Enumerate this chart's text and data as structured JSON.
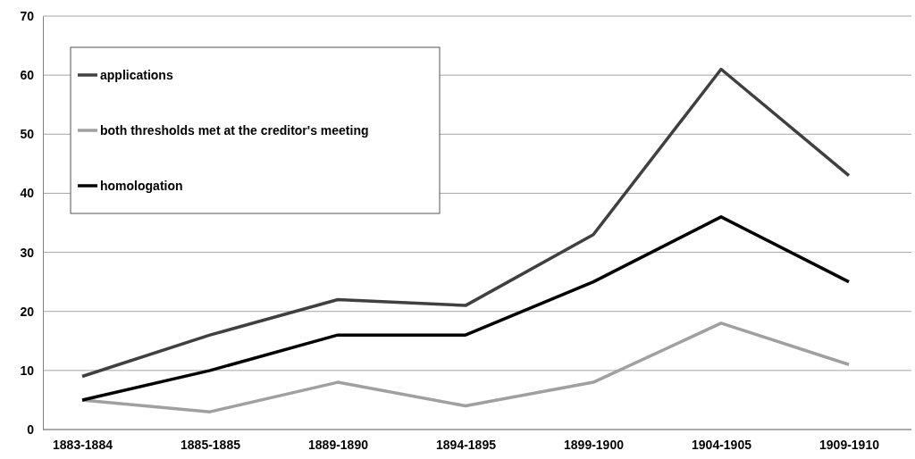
{
  "chart_data": {
    "type": "line",
    "categories": [
      "1883-1884",
      "1885-1885",
      "1889-1890",
      "1894-1895",
      "1899-1900",
      "1904-1905",
      "1909-1910"
    ],
    "series": [
      {
        "name": "applications",
        "color": "#404040",
        "values": [
          9,
          16,
          22,
          21,
          33,
          61,
          43
        ]
      },
      {
        "name": "both thresholds met at the creditor's meeting",
        "color": "#a0a0a0",
        "values": [
          5,
          3,
          8,
          4,
          8,
          18,
          11
        ]
      },
      {
        "name": "homologation",
        "color": "#000000",
        "values": [
          5,
          10,
          16,
          16,
          25,
          36,
          25
        ]
      }
    ],
    "ylim": [
      0,
      70
    ],
    "yticks": [
      0,
      10,
      20,
      30,
      40,
      50,
      60,
      70
    ],
    "grid": "y",
    "legend": "top left",
    "marker": "none",
    "line_style": "solid"
  }
}
